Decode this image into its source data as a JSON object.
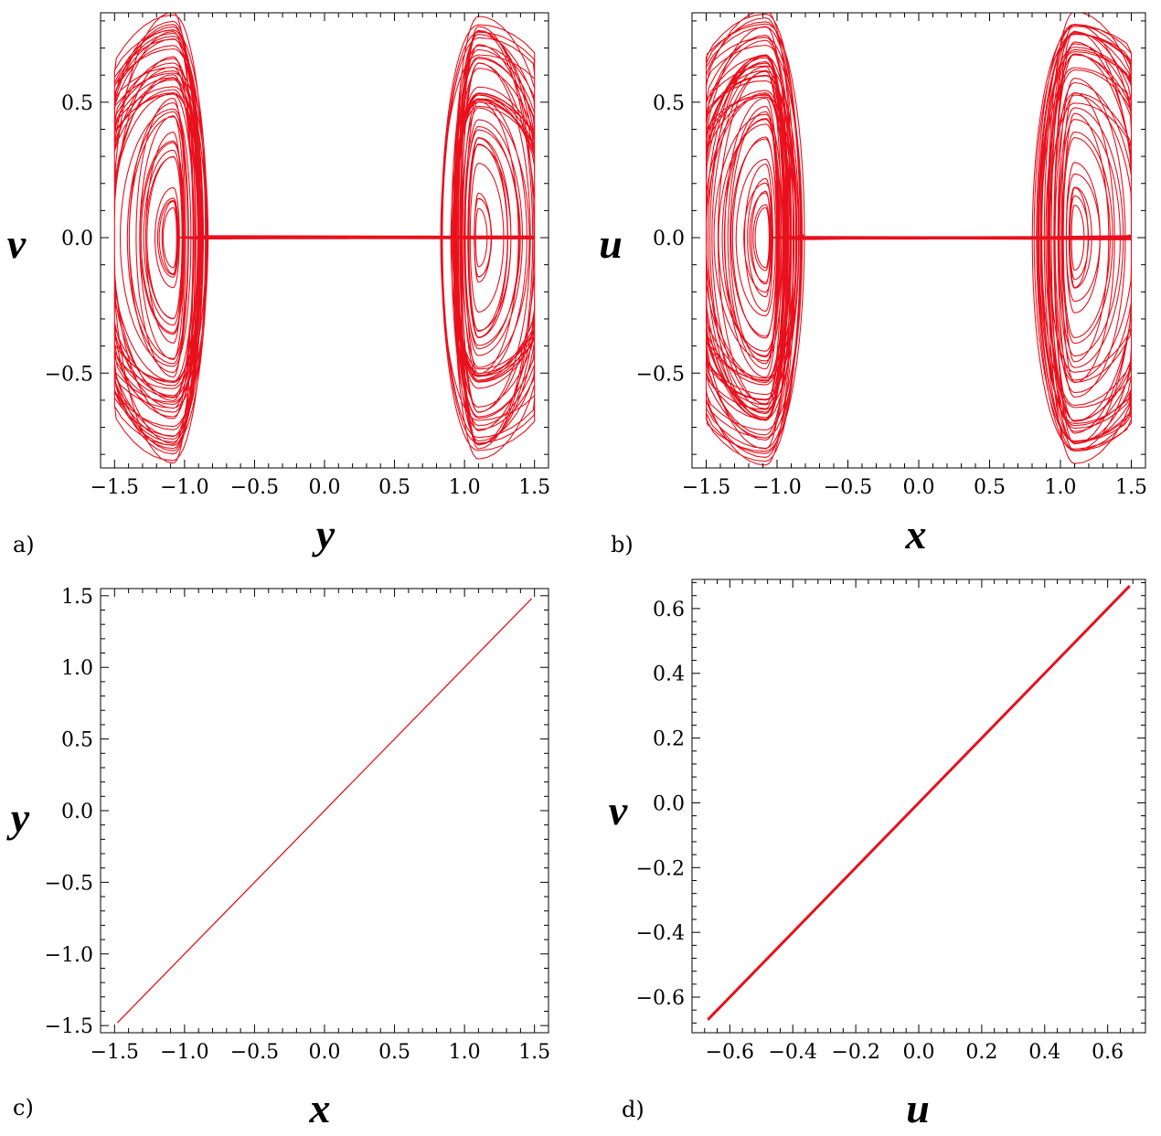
{
  "chart_data": [
    {
      "type": "line",
      "panel_label": "a)",
      "xlabel": "y",
      "ylabel": "v",
      "xlim": [
        -1.6,
        1.6
      ],
      "ylim": [
        -0.85,
        0.83
      ],
      "xticks": [
        -1.5,
        -1.0,
        -0.5,
        0.0,
        0.5,
        1.0,
        1.5
      ],
      "yticks": [
        -0.5,
        0.0,
        0.5
      ],
      "xtick_labels": [
        "−1.5",
        "−1.0",
        "−0.5",
        "0.0",
        "0.5",
        "1.0",
        "1.5"
      ],
      "ytick_labels": [
        "−0.5",
        "0.0",
        "0.5"
      ],
      "grid": false,
      "series_color": "#e8101c",
      "description_kind": "chaotic double-scroll phase portrait",
      "attractor": {
        "centers": [
          [
            -1.08,
            0.0
          ],
          [
            1.1,
            0.0
          ]
        ],
        "x_extent": [
          -1.5,
          1.5
        ],
        "y_extent": [
          -0.82,
          0.82
        ]
      }
    },
    {
      "type": "line",
      "panel_label": "b)",
      "xlabel": "x",
      "ylabel": "u",
      "xlim": [
        -1.6,
        1.6
      ],
      "ylim": [
        -0.85,
        0.83
      ],
      "xticks": [
        -1.5,
        -1.0,
        -0.5,
        0.0,
        0.5,
        1.0,
        1.5
      ],
      "yticks": [
        -0.5,
        0.0,
        0.5
      ],
      "xtick_labels": [
        "−1.5",
        "−1.0",
        "−0.5",
        "0.0",
        "0.5",
        "1.0",
        "1.5"
      ],
      "ytick_labels": [
        "−0.5",
        "0.0",
        "0.5"
      ],
      "grid": false,
      "series_color": "#e8101c",
      "attractor": {
        "centers": [
          [
            -1.08,
            0.0
          ],
          [
            1.1,
            0.0
          ]
        ],
        "x_extent": [
          -1.5,
          1.5
        ],
        "y_extent": [
          -0.82,
          0.82
        ]
      }
    },
    {
      "type": "line",
      "panel_label": "c)",
      "xlabel": "x",
      "ylabel": "y",
      "xlim": [
        -1.6,
        1.6
      ],
      "ylim": [
        -1.55,
        1.55
      ],
      "xticks": [
        -1.5,
        -1.0,
        -0.5,
        0.0,
        0.5,
        1.0,
        1.5
      ],
      "yticks": [
        -1.5,
        -1.0,
        -0.5,
        0.0,
        0.5,
        1.0,
        1.5
      ],
      "xtick_labels": [
        "−1.5",
        "−1.0",
        "−0.5",
        "0.0",
        "0.5",
        "1.0",
        "1.5"
      ],
      "ytick_labels": [
        "−1.5",
        "−1.0",
        "−0.5",
        "0.0",
        "0.5",
        "1.0",
        "1.5"
      ],
      "grid": false,
      "series_color": "#e8101c",
      "x": [
        -1.48,
        1.48
      ],
      "y": [
        -1.48,
        1.48
      ]
    },
    {
      "type": "line",
      "panel_label": "d)",
      "xlabel": "u",
      "ylabel": "v",
      "xlim": [
        -0.72,
        0.72
      ],
      "ylim": [
        -0.71,
        0.69
      ],
      "xticks": [
        -0.6,
        -0.4,
        -0.2,
        0.0,
        0.2,
        0.4,
        0.6
      ],
      "yticks": [
        -0.6,
        -0.4,
        -0.2,
        0.0,
        0.2,
        0.4,
        0.6
      ],
      "xtick_labels": [
        "−0.6",
        "−0.4",
        "−0.2",
        "0.0",
        "0.2",
        "0.4",
        "0.6"
      ],
      "ytick_labels": [
        "−0.6",
        "−0.4",
        "−0.2",
        "0.0",
        "0.2",
        "0.4",
        "0.6"
      ],
      "grid": false,
      "series_color": "#e8101c",
      "x": [
        -0.67,
        0.67
      ],
      "y": [
        -0.67,
        0.67
      ]
    }
  ]
}
